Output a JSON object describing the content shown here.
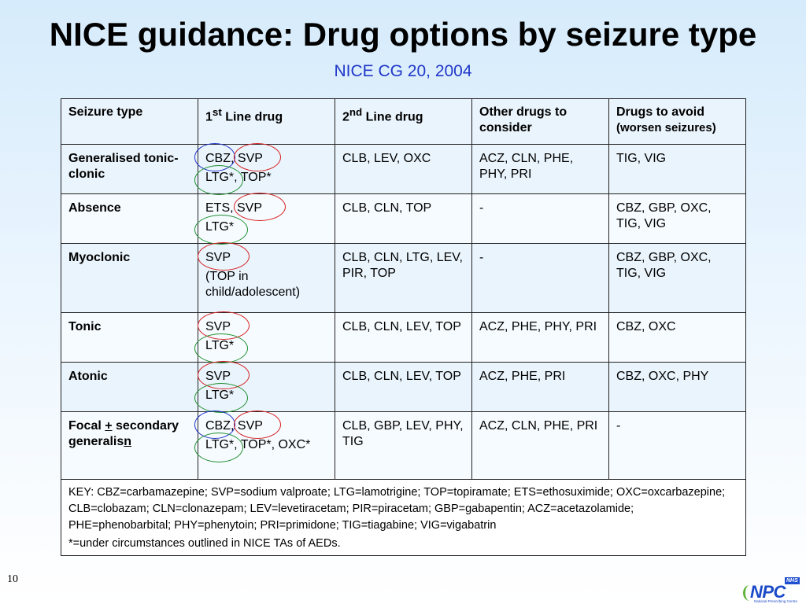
{
  "title": "NICE guidance: Drug options by seizure type",
  "subtitle": "NICE CG 20, 2004",
  "table": {
    "headers": {
      "seizure_type": "Seizure type",
      "first_line_pre": "1",
      "first_line_sup": "st",
      "first_line_post": " Line drug",
      "second_line_pre": "2",
      "second_line_sup": "nd",
      "second_line_post": " Line drug",
      "other": "Other drugs to consider",
      "avoid": "Drugs to avoid",
      "avoid_note": "(worsen seizures)"
    },
    "rows": [
      {
        "seizure": "Generalised tonic-clonic",
        "first_a": "CBZ, SVP",
        "first_b": "LTG*, TOP*",
        "second": "CLB, LEV, OXC",
        "other": "ACZ, CLN, PHE, PHY, PRI",
        "avoid": "TIG, VIG"
      },
      {
        "seizure": "Absence",
        "first_a": "ETS, SVP",
        "first_b": "LTG*",
        "second": "CLB, CLN, TOP",
        "other": "-",
        "avoid": "CBZ, GBP, OXC, TIG, VIG"
      },
      {
        "seizure": "Myoclonic",
        "first_a": "SVP",
        "first_b": "(TOP in child/adolescent)",
        "second": "CLB, CLN, LTG, LEV, PIR, TOP",
        "other": "-",
        "avoid": "CBZ, GBP, OXC, TIG, VIG"
      },
      {
        "seizure": "Tonic",
        "first_a": "SVP",
        "first_b": "LTG*",
        "second": "CLB, CLN, LEV, TOP",
        "other": "ACZ, PHE, PHY, PRI",
        "avoid": "CBZ, OXC"
      },
      {
        "seizure": "Atonic",
        "first_a": "SVP",
        "first_b": "LTG*",
        "second": "CLB, CLN, LEV, TOP",
        "other": "ACZ, PHE, PRI",
        "avoid": "CBZ, OXC, PHY"
      },
      {
        "seizure_pre": "Focal ",
        "seizure_pm": "+",
        "seizure_mid": " secondary generalis",
        "seizure_n": "n",
        "first_a": "CBZ, SVP",
        "first_b": "LTG*, TOP*, OXC*",
        "second": "CLB, GBP, LEV, PHY, TIG",
        "other": "ACZ, CLN, PHE, PRI",
        "avoid": "-"
      }
    ],
    "key": "KEY: CBZ=carbamazepine; SVP=sodium valproate; LTG=lamotrigine; TOP=topiramate; ETS=ethosuximide; OXC=oxcarbazepine; CLB=clobazam; CLN=clonazepam; LEV=levetiracetam; PIR=piracetam; GBP=gabapentin; ACZ=acetazolamide; PHE=phenobarbital; PHY=phenytoin; PRI=primidone; TIG=tiagabine; VIG=vigabatrin",
    "footnote": "*=under circumstances outlined in NICE TAs of AEDs."
  },
  "slide_number": "10",
  "logo": {
    "nhs": "NHS",
    "name": "NPC",
    "caption": "National Prescribing Centre"
  },
  "colors": {
    "subtitle": "#1f37c8",
    "ring_blue": "#2233cc",
    "ring_red": "#d62020",
    "ring_green": "#1f8f2f"
  }
}
